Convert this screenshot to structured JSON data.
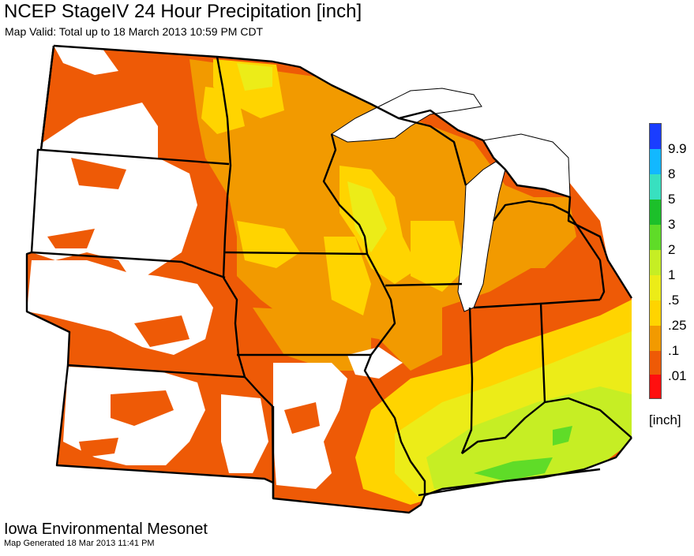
{
  "header": {
    "title": "NCEP StageIV 24 Hour Precipitation [inch]",
    "subtitle": "Map Valid: Total up to 18 March 2013 10:59 PM CDT"
  },
  "legend": {
    "unit": "[inch]",
    "entries": [
      {
        "label": "9.9",
        "color": "#1a3dff"
      },
      {
        "label": "8",
        "color": "#12b8ff"
      },
      {
        "label": "5",
        "color": "#38e0c0"
      },
      {
        "label": "3",
        "color": "#1cc02a"
      },
      {
        "label": "2",
        "color": "#5fdc28"
      },
      {
        "label": "1",
        "color": "#c6ee24"
      },
      {
        "label": ".5",
        "color": "#ecec18"
      },
      {
        "label": ".25",
        "color": "#ffd400"
      },
      {
        "label": ".1",
        "color": "#f29a00"
      },
      {
        "label": ".01",
        "color": "#ee5a06"
      },
      {
        "label": "",
        "color": "#ff0f0f"
      }
    ]
  },
  "footer": {
    "org": "Iowa Environmental Mesonet",
    "generated": "Map Generated 18 Mar 2013 11:41 PM"
  },
  "colors": {
    "heavy_orange": "#ee5a06",
    "orange": "#f29a00",
    "gold": "#ffd400",
    "yellow": "#ecec18",
    "yellow_green": "#c6ee24",
    "green": "#5fdc28",
    "lake_white": "#ffffff",
    "border": "#000000"
  }
}
